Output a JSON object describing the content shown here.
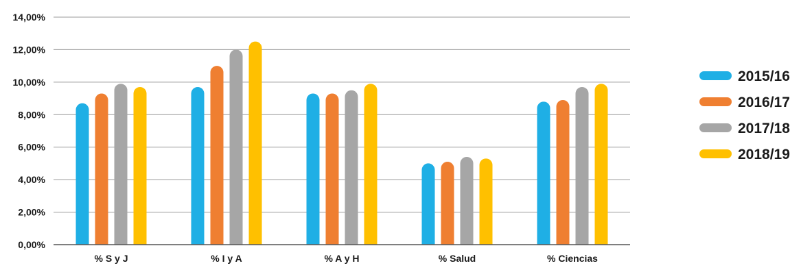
{
  "chart_data": {
    "type": "bar",
    "title": "",
    "xlabel": "",
    "ylabel": "",
    "categories": [
      "% S y J",
      "% I y A",
      "% A y H",
      "% Salud",
      "% Ciencias"
    ],
    "series": [
      {
        "name": "2015/16",
        "color": "#1FAFE5",
        "values": [
          8.7,
          9.7,
          9.3,
          5.0,
          8.8
        ]
      },
      {
        "name": "2016/17",
        "color": "#EF7F31",
        "values": [
          9.3,
          11.0,
          9.3,
          5.1,
          8.9
        ]
      },
      {
        "name": "2017/18",
        "color": "#A6A6A6",
        "values": [
          9.9,
          12.0,
          9.5,
          5.4,
          9.7
        ]
      },
      {
        "name": "2018/19",
        "color": "#FFC000",
        "values": [
          9.7,
          12.5,
          9.9,
          5.3,
          9.9
        ]
      }
    ],
    "ylim": [
      0,
      14
    ],
    "y_ticks": [
      "0,00%",
      "2,00%",
      "4,00%",
      "6,00%",
      "8,00%",
      "10,00%",
      "12,00%",
      "14,00%"
    ],
    "y_tick_values": [
      0,
      2,
      4,
      6,
      8,
      10,
      12,
      14
    ],
    "grid": true,
    "legend_position": "right"
  }
}
